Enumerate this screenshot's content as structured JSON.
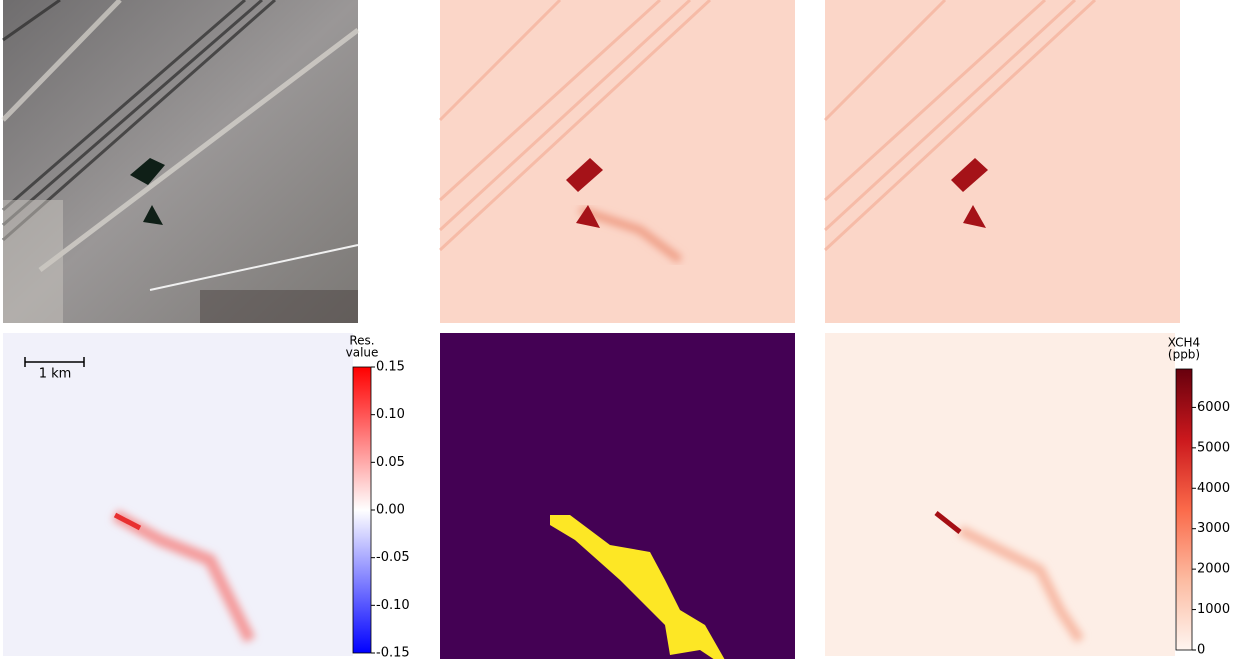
{
  "scale_bar": {
    "label": "1 km"
  },
  "colorbars": [
    {
      "title": [
        "Res.",
        "value"
      ],
      "colormap": "bwr",
      "lim": [
        -0.15,
        0.15
      ],
      "ticks": [
        {
          "value": 0.15,
          "label": "0.15"
        },
        {
          "value": 0.1,
          "label": "0.10"
        },
        {
          "value": 0.05,
          "label": "0.05"
        },
        {
          "value": 0,
          "label": "0.00"
        },
        {
          "value": -0.05,
          "label": "-0.05"
        },
        {
          "value": -0.1,
          "label": "-0.10"
        },
        {
          "value": -0.15,
          "label": "-0.15"
        }
      ]
    },
    {
      "title": [
        "XCH4",
        "(ppb)"
      ],
      "colormap": "Reds",
      "lim": [
        0,
        6950
      ],
      "ticks": [
        0,
        1000,
        2000,
        3000,
        4000,
        5000,
        6000
      ]
    }
  ]
}
